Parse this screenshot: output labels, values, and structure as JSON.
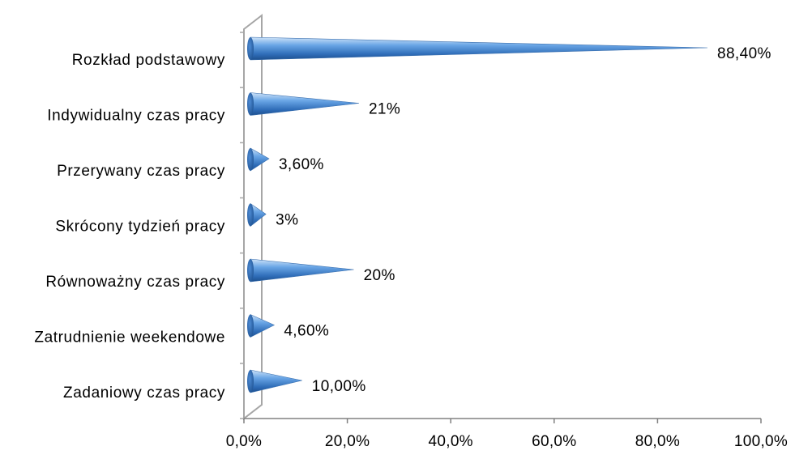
{
  "chart_data": {
    "type": "bar",
    "orientation": "horizontal",
    "bar_shape": "cone",
    "categories": [
      "Rozkład podstawowy",
      "Indywidualny czas pracy",
      "Przerywany czas pracy",
      "Skrócony tydzień pracy",
      "Równoważny czas pracy",
      "Zatrudnienie weekendowe",
      "Zadaniowy czas pracy"
    ],
    "values": [
      88.4,
      21,
      3.6,
      3,
      20,
      4.6,
      10
    ],
    "data_labels": [
      "88,40%",
      "21%",
      "3,60%",
      "3%",
      "20%",
      "4,60%",
      "10,00%"
    ],
    "xlim": [
      0,
      100
    ],
    "x_ticks": [
      "0,0%",
      "20,0%",
      "40,0%",
      "60,0%",
      "80,0%",
      "100,0%"
    ],
    "title": "",
    "xlabel": "",
    "ylabel": "",
    "grid": false,
    "legend": "none",
    "colors": {
      "cone_light": "#a9cdf2",
      "cone_mid": "#5b9be0",
      "cone_dark": "#1f5494",
      "axis": "#a6a6a6",
      "tick_axis": "#808080"
    }
  }
}
